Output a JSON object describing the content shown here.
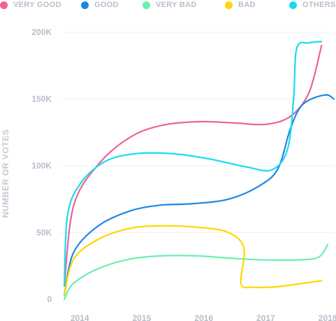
{
  "chart_data": {
    "type": "line",
    "title": "",
    "xlabel": "",
    "ylabel": "NUMBER OR VOTES",
    "x_ticks": [
      "2014",
      "2015",
      "2016",
      "2017",
      "2018"
    ],
    "y_ticks": [
      "0",
      "50K",
      "100K",
      "150K",
      "200K"
    ],
    "xlim": [
      2013.75,
      2018.1
    ],
    "ylim": [
      0,
      200000
    ],
    "grid": "horizontal",
    "legend_position": "top-left",
    "series": [
      {
        "name": "VERY GOOD",
        "color": "#f06292",
        "x": [
          2013.75,
          2013.9,
          2014.3,
          2014.8,
          2015.3,
          2015.9,
          2016.5,
          2017.0,
          2017.4,
          2017.7,
          2017.9
        ],
        "y": [
          10000,
          70000,
          101000,
          121000,
          130000,
          133000,
          132000,
          131000,
          137000,
          155000,
          190000
        ]
      },
      {
        "name": "GOOD",
        "color": "#1e88e5",
        "x": [
          2013.75,
          2013.9,
          2014.3,
          2014.8,
          2015.3,
          2015.8,
          2016.4,
          2016.9,
          2017.2,
          2017.4,
          2017.6,
          2017.95,
          2018.1
        ],
        "y": [
          3000,
          35000,
          55000,
          66000,
          70500,
          71500,
          75000,
          85000,
          98000,
          128000,
          146000,
          153000,
          150000
        ]
      },
      {
        "name": "VERY BAD",
        "color": "#69f0ae",
        "x": [
          2013.75,
          2013.9,
          2014.3,
          2014.8,
          2015.3,
          2015.9,
          2016.5,
          2017.0,
          2017.5,
          2017.85,
          2018.0
        ],
        "y": [
          0,
          12000,
          23000,
          30000,
          32500,
          32500,
          30500,
          29500,
          29500,
          31500,
          41000
        ]
      },
      {
        "name": "BAD",
        "color": "#ffd600",
        "x": [
          2013.75,
          2013.9,
          2014.3,
          2014.8,
          2015.3,
          2015.9,
          2016.4,
          2016.65,
          2016.6,
          2016.8,
          2017.2,
          2017.6,
          2017.9
        ],
        "y": [
          3000,
          30000,
          45000,
          53000,
          55000,
          54000,
          50000,
          38000,
          12000,
          9000,
          9500,
          12000,
          14000
        ]
      },
      {
        "name": "OTHERS",
        "color": "#18dcf0",
        "x": [
          2013.75,
          2013.8,
          2014.0,
          2014.4,
          2014.9,
          2015.5,
          2016.1,
          2016.7,
          2017.1,
          2017.35,
          2017.45,
          2017.5,
          2017.7,
          2017.9
        ],
        "y": [
          10000,
          62000,
          86000,
          103000,
          109000,
          109000,
          105000,
          99000,
          97000,
          112000,
          150000,
          188000,
          192000,
          193000
        ]
      }
    ]
  }
}
